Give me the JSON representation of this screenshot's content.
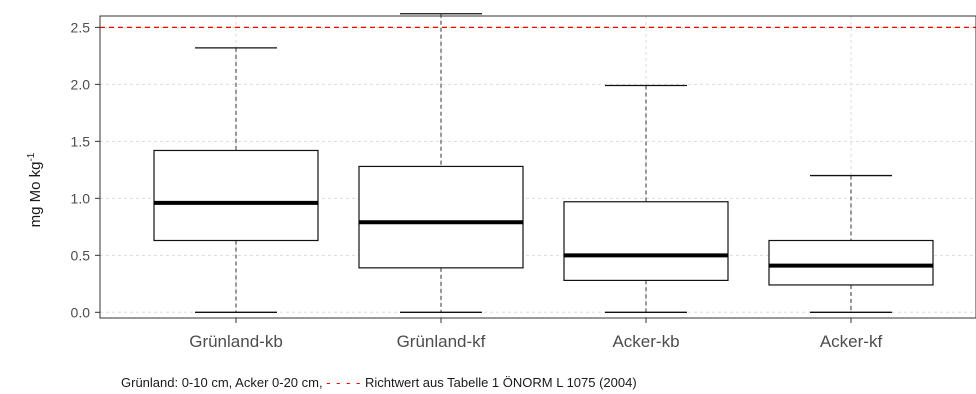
{
  "chart_data": {
    "type": "boxplot",
    "ylabel": "mg Mo kg",
    "ylabel_superscript": "-1",
    "ylim": [
      -0.05,
      2.6
    ],
    "yticks": [
      "0.0",
      "0.5",
      "1.0",
      "1.5",
      "2.0",
      "2.5"
    ],
    "grid": true,
    "categories": [
      "Grünland-kb",
      "Grünland-kf",
      "Acker-kb",
      "Acker-kf"
    ],
    "boxes": [
      {
        "whisker_low": 0.0,
        "q1": 0.63,
        "median": 0.96,
        "q3": 1.42,
        "whisker_high": 2.32
      },
      {
        "whisker_low": 0.0,
        "q1": 0.39,
        "median": 0.79,
        "q3": 1.28,
        "whisker_high": 2.62
      },
      {
        "whisker_low": 0.0,
        "q1": 0.28,
        "median": 0.5,
        "q3": 0.97,
        "whisker_high": 1.99
      },
      {
        "whisker_low": 0.0,
        "q1": 0.24,
        "median": 0.41,
        "q3": 0.63,
        "whisker_high": 1.2
      }
    ],
    "reference_line": {
      "value": 2.5,
      "color": "#ff0000"
    }
  },
  "note": {
    "prefix": "Grünland: 0-10 cm, Acker 0-20 cm,",
    "dash": "- - - -",
    "suffix": "Richtwert  aus Tabelle 1 ÖNORM L 1075 (2004)"
  }
}
